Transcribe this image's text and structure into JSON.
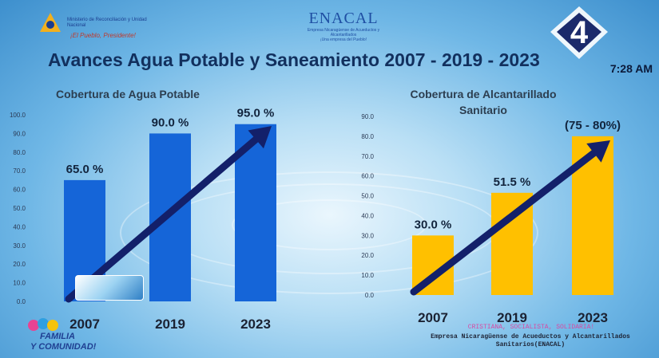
{
  "header": {
    "ministry_text": "Ministerio de Reconciliación y Unidad Nacional",
    "ministry_slogan": "¡El Pueblo, Presidente!",
    "enacal_name": "ENACAL",
    "enacal_full": "Empresa Nicaragüense de Acueductos y Alcantarillados",
    "enacal_slogan": "¡Una empresa del Pueblo!",
    "tv_time": "7:28 AM"
  },
  "title": "Avances Agua Potable y Saneamiento 2007 - 2019 - 2023",
  "footer": {
    "familia_line1": "FAMILIA",
    "familia_line2": "Y COMUNIDAD!",
    "person": "CRISTIANA, SOCIALISTA, SOLIDARIA!",
    "org_line1": "Empresa Nicaragüense de Acueductos y Alcantarillados",
    "org_line2": "Sanitarios(ENACAL)"
  },
  "colors": {
    "left_bar": "#1565d8",
    "right_bar": "#ffc000",
    "arrow": "#13206a"
  },
  "chart_data": [
    {
      "type": "bar",
      "title": "Cobertura de Agua Potable",
      "categories": [
        "2007",
        "2019",
        "2023"
      ],
      "values": [
        65.0,
        90.0,
        95.0
      ],
      "data_labels": [
        "65.0 %",
        "90.0 %",
        "95.0 %"
      ],
      "ylim": [
        0,
        100
      ],
      "yticks": [
        "0.0",
        "10.0",
        "20.0",
        "30.0",
        "40.0",
        "50.0",
        "60.0",
        "70.0",
        "80.0",
        "90.0",
        "100.0"
      ],
      "grid": false
    },
    {
      "type": "bar",
      "title": "Cobertura de Alcantarillado Sanitario",
      "categories": [
        "2007",
        "2019",
        "2023"
      ],
      "values": [
        30.0,
        51.5,
        80.0
      ],
      "data_labels": [
        "30.0 %",
        "51.5 %",
        "(75 - 80%)"
      ],
      "ylim": [
        0,
        90
      ],
      "yticks": [
        "0.0",
        "10.0",
        "20.0",
        "30.0",
        "40.0",
        "50.0",
        "60.0",
        "70.0",
        "80.0",
        "90.0"
      ],
      "grid": false
    }
  ]
}
